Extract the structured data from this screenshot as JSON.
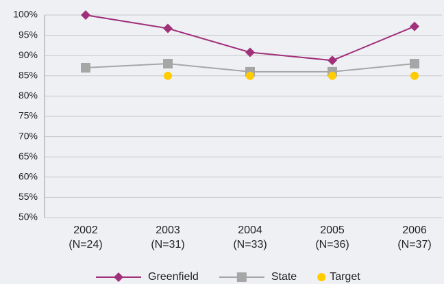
{
  "chart_data": {
    "type": "line",
    "categories": [
      "2002\n(N=24)",
      "2003\n(N=31)",
      "2004\n(N=33)",
      "2005\n(N=36)",
      "2006\n(N=37)"
    ],
    "series": [
      {
        "name": "Greenfield",
        "color": "#a0307a",
        "marker": "diamond",
        "line": true,
        "values": [
          100,
          96.7,
          90.8,
          88.8,
          97.2
        ]
      },
      {
        "name": "State",
        "color": "#a6a6a6",
        "marker": "square",
        "line": true,
        "values": [
          87,
          88,
          86,
          86,
          88
        ]
      },
      {
        "name": "Target",
        "color": "#ffcc00",
        "marker": "circle",
        "line": false,
        "values": [
          null,
          85,
          85,
          85,
          85
        ]
      }
    ],
    "ylim": [
      50,
      100
    ],
    "yticks": [
      {
        "value": 50,
        "label": "50%"
      },
      {
        "value": 55,
        "label": "55%"
      },
      {
        "value": 60,
        "label": "60%"
      },
      {
        "value": 65,
        "label": "65%"
      },
      {
        "value": 70,
        "label": "70%"
      },
      {
        "value": 75,
        "label": "75%"
      },
      {
        "value": 80,
        "label": "80%"
      },
      {
        "value": 85,
        "label": "85%"
      },
      {
        "value": 90,
        "label": "90%"
      },
      {
        "value": 95,
        "label": "95%"
      },
      {
        "value": 100,
        "label": "100%"
      }
    ],
    "grid": true,
    "legend": "bottom"
  }
}
